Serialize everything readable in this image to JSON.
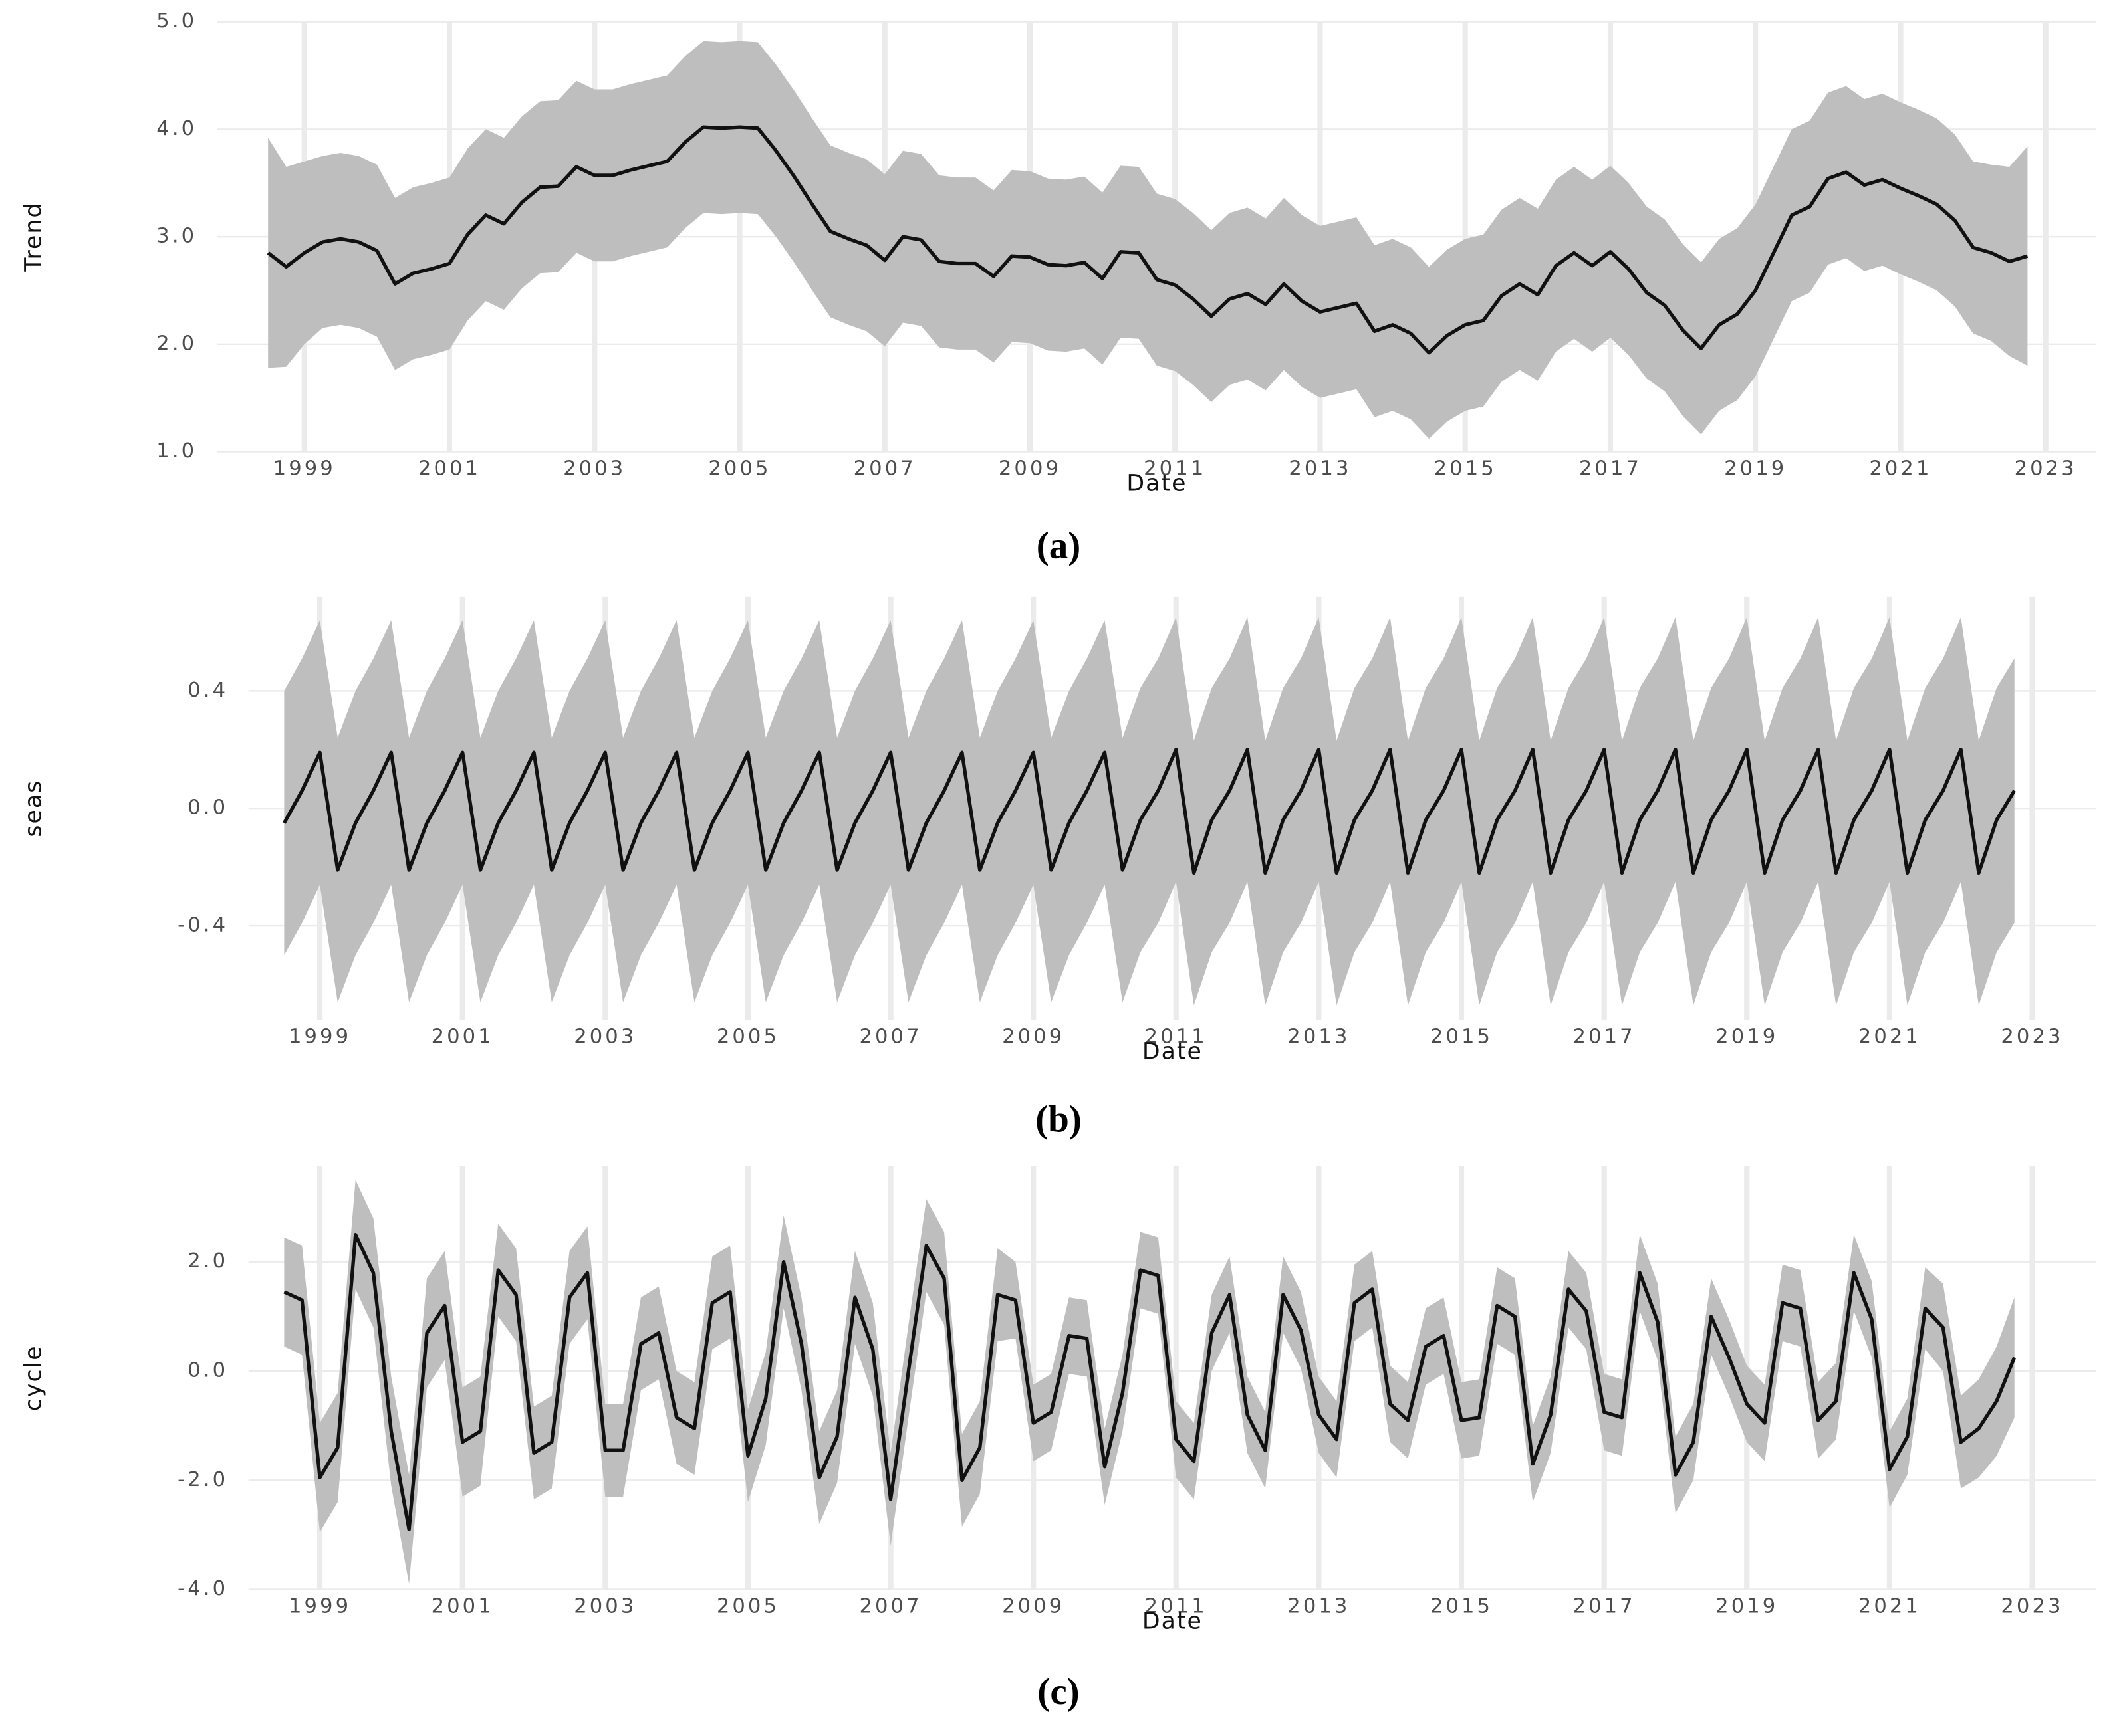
{
  "chart_data": [
    {
      "type": "line",
      "caption": "(a)",
      "xlabel": "Date",
      "ylabel": "Trend",
      "grid": true,
      "color": "#111111",
      "band_color": "#bebebe",
      "xlim": [
        1997.8,
        2023.7
      ],
      "ylim": [
        1.0,
        5.0
      ],
      "xticks": [
        1999,
        2001,
        2003,
        2005,
        2007,
        2009,
        2011,
        2013,
        2015,
        2017,
        2019,
        2021,
        2023
      ],
      "yticks": [
        {
          "value": 1,
          "label": "1.0"
        },
        {
          "value": 2,
          "label": "2.0"
        },
        {
          "value": 3,
          "label": "3.0"
        },
        {
          "value": 4,
          "label": "4.0"
        },
        {
          "value": 5,
          "label": "5.0"
        }
      ],
      "x": [
        1998.5,
        1998.75,
        1999,
        1999.25,
        1999.5,
        1999.75,
        2000,
        2000.25,
        2000.5,
        2000.75,
        2001,
        2001.25,
        2001.5,
        2001.75,
        2002,
        2002.25,
        2002.5,
        2002.75,
        2003,
        2003.25,
        2003.5,
        2003.75,
        2004,
        2004.25,
        2004.5,
        2004.75,
        2005,
        2005.25,
        2005.5,
        2005.75,
        2006,
        2006.25,
        2006.5,
        2006.75,
        2007,
        2007.25,
        2007.5,
        2007.75,
        2008,
        2008.25,
        2008.5,
        2008.75,
        2009,
        2009.25,
        2009.5,
        2009.75,
        2010,
        2010.25,
        2010.5,
        2010.75,
        2011,
        2011.25,
        2011.5,
        2011.75,
        2012,
        2012.25,
        2012.5,
        2012.75,
        2013,
        2013.25,
        2013.5,
        2013.75,
        2014,
        2014.25,
        2014.5,
        2014.75,
        2015,
        2015.25,
        2015.5,
        2015.75,
        2016,
        2016.25,
        2016.5,
        2016.75,
        2017,
        2017.25,
        2017.5,
        2017.75,
        2018,
        2018.25,
        2018.5,
        2018.75,
        2019,
        2019.25,
        2019.5,
        2019.75,
        2020,
        2020.25,
        2020.5,
        2020.75,
        2021,
        2021.25,
        2021.5,
        2021.75,
        2022,
        2022.25,
        2022.5,
        2022.75
      ],
      "values": [
        2.85,
        2.72,
        2.85,
        2.95,
        2.98,
        2.95,
        2.87,
        2.56,
        2.66,
        2.7,
        2.75,
        3.02,
        3.2,
        3.12,
        3.32,
        3.46,
        3.47,
        3.65,
        3.57,
        3.57,
        3.62,
        3.66,
        3.7,
        3.88,
        4.02,
        4.01,
        4.02,
        4.01,
        3.8,
        3.56,
        3.3,
        3.05,
        2.98,
        2.92,
        2.78,
        3.0,
        2.97,
        2.77,
        2.75,
        2.75,
        2.63,
        2.82,
        2.81,
        2.74,
        2.73,
        2.76,
        2.61,
        2.86,
        2.85,
        2.6,
        2.55,
        2.42,
        2.26,
        2.42,
        2.47,
        2.37,
        2.56,
        2.4,
        2.3,
        2.34,
        2.38,
        2.12,
        2.18,
        2.1,
        1.92,
        2.08,
        2.18,
        2.22,
        2.45,
        2.56,
        2.46,
        2.73,
        2.85,
        2.73,
        2.86,
        2.7,
        2.48,
        2.36,
        2.13,
        1.96,
        2.18,
        2.28,
        2.5,
        2.85,
        3.2,
        3.28,
        3.54,
        3.6,
        3.48,
        3.53,
        3.45,
        3.38,
        3.3,
        3.15,
        2.9,
        2.85,
        2.77,
        2.82
      ],
      "upper": [
        3.92,
        3.65,
        3.7,
        3.75,
        3.78,
        3.75,
        3.67,
        3.36,
        3.46,
        3.5,
        3.55,
        3.82,
        4.0,
        3.92,
        4.12,
        4.26,
        4.27,
        4.45,
        4.37,
        4.37,
        4.42,
        4.46,
        4.5,
        4.68,
        4.82,
        4.81,
        4.82,
        4.81,
        4.6,
        4.36,
        4.1,
        3.85,
        3.78,
        3.72,
        3.58,
        3.8,
        3.77,
        3.57,
        3.55,
        3.55,
        3.43,
        3.62,
        3.61,
        3.54,
        3.53,
        3.56,
        3.41,
        3.66,
        3.65,
        3.4,
        3.35,
        3.22,
        3.06,
        3.22,
        3.27,
        3.17,
        3.36,
        3.2,
        3.1,
        3.14,
        3.18,
        2.92,
        2.98,
        2.9,
        2.72,
        2.88,
        2.98,
        3.02,
        3.25,
        3.36,
        3.26,
        3.53,
        3.65,
        3.53,
        3.66,
        3.5,
        3.28,
        3.16,
        2.93,
        2.76,
        2.98,
        3.08,
        3.3,
        3.65,
        4.0,
        4.08,
        4.34,
        4.4,
        4.28,
        4.33,
        4.25,
        4.18,
        4.1,
        3.95,
        3.7,
        3.67,
        3.65,
        3.84
      ],
      "lower": [
        1.78,
        1.79,
        2.0,
        2.15,
        2.18,
        2.15,
        2.07,
        1.76,
        1.86,
        1.9,
        1.95,
        2.22,
        2.4,
        2.32,
        2.52,
        2.66,
        2.67,
        2.85,
        2.77,
        2.77,
        2.82,
        2.86,
        2.9,
        3.08,
        3.22,
        3.21,
        3.22,
        3.21,
        3.0,
        2.76,
        2.5,
        2.25,
        2.18,
        2.12,
        1.98,
        2.2,
        2.17,
        1.97,
        1.95,
        1.95,
        1.83,
        2.02,
        2.01,
        1.94,
        1.93,
        1.96,
        1.81,
        2.06,
        2.05,
        1.8,
        1.75,
        1.62,
        1.46,
        1.62,
        1.67,
        1.57,
        1.76,
        1.6,
        1.5,
        1.54,
        1.58,
        1.32,
        1.38,
        1.3,
        1.12,
        1.28,
        1.38,
        1.42,
        1.65,
        1.76,
        1.66,
        1.93,
        2.05,
        1.93,
        2.06,
        1.9,
        1.68,
        1.56,
        1.33,
        1.16,
        1.38,
        1.48,
        1.7,
        2.05,
        2.4,
        2.48,
        2.74,
        2.8,
        2.68,
        2.73,
        2.65,
        2.58,
        2.5,
        2.35,
        2.1,
        2.03,
        1.89,
        1.8
      ]
    },
    {
      "type": "line",
      "caption": "(b)",
      "xlabel": "Date",
      "ylabel": "seas",
      "grid": true,
      "color": "#111111",
      "band_color": "#bebebe",
      "xlim": [
        1998.0,
        2023.9
      ],
      "ylim": [
        -0.72,
        0.72
      ],
      "xticks": [
        1999,
        2001,
        2003,
        2005,
        2007,
        2009,
        2011,
        2013,
        2015,
        2017,
        2019,
        2021,
        2023
      ],
      "yticks": [
        -0.4,
        {
          "value": 0,
          "label": "0.0"
        },
        0.4
      ],
      "x": [
        1998.5,
        1998.75,
        1999,
        1999.25,
        1999.5,
        1999.75,
        2000,
        2000.25,
        2000.5,
        2000.75,
        2001,
        2001.25,
        2001.5,
        2001.75,
        2002,
        2002.25,
        2002.5,
        2002.75,
        2003,
        2003.25,
        2003.5,
        2003.75,
        2004,
        2004.25,
        2004.5,
        2004.75,
        2005,
        2005.25,
        2005.5,
        2005.75,
        2006,
        2006.25,
        2006.5,
        2006.75,
        2007,
        2007.25,
        2007.5,
        2007.75,
        2008,
        2008.25,
        2008.5,
        2008.75,
        2009,
        2009.25,
        2009.5,
        2009.75,
        2010,
        2010.25,
        2010.5,
        2010.75,
        2011,
        2011.25,
        2011.5,
        2011.75,
        2012,
        2012.25,
        2012.5,
        2012.75,
        2013,
        2013.25,
        2013.5,
        2013.75,
        2014,
        2014.25,
        2014.5,
        2014.75,
        2015,
        2015.25,
        2015.5,
        2015.75,
        2016,
        2016.25,
        2016.5,
        2016.75,
        2017,
        2017.25,
        2017.5,
        2017.75,
        2018,
        2018.25,
        2018.5,
        2018.75,
        2019,
        2019.25,
        2019.5,
        2019.75,
        2020,
        2020.25,
        2020.5,
        2020.75,
        2021,
        2021.25,
        2021.5,
        2021.75,
        2022,
        2022.25,
        2022.5,
        2022.75
      ],
      "values": [
        -0.05,
        0.06,
        0.19,
        -0.21,
        -0.05,
        0.06,
        0.19,
        -0.21,
        -0.05,
        0.06,
        0.19,
        -0.21,
        -0.05,
        0.06,
        0.19,
        -0.21,
        -0.05,
        0.06,
        0.19,
        -0.21,
        -0.05,
        0.06,
        0.19,
        -0.21,
        -0.05,
        0.06,
        0.19,
        -0.21,
        -0.05,
        0.06,
        0.19,
        -0.21,
        -0.05,
        0.06,
        0.19,
        -0.21,
        -0.05,
        0.06,
        0.19,
        -0.21,
        -0.05,
        0.06,
        0.19,
        -0.21,
        -0.05,
        0.06,
        0.19,
        -0.21,
        -0.04,
        0.06,
        0.2,
        -0.22,
        -0.04,
        0.06,
        0.2,
        -0.22,
        -0.04,
        0.06,
        0.2,
        -0.22,
        -0.04,
        0.06,
        0.2,
        -0.22,
        -0.04,
        0.06,
        0.2,
        -0.22,
        -0.04,
        0.06,
        0.2,
        -0.22,
        -0.04,
        0.06,
        0.2,
        -0.22,
        -0.04,
        0.06,
        0.2,
        -0.22,
        -0.04,
        0.06,
        0.2,
        -0.22,
        -0.04,
        0.06,
        0.2,
        -0.22,
        -0.04,
        0.06,
        0.2,
        -0.22,
        -0.04,
        0.06,
        0.2,
        -0.22,
        -0.04,
        0.06
      ],
      "upper": [
        0.4,
        0.51,
        0.64,
        0.24,
        0.4,
        0.51,
        0.64,
        0.24,
        0.4,
        0.51,
        0.64,
        0.24,
        0.4,
        0.51,
        0.64,
        0.24,
        0.4,
        0.51,
        0.64,
        0.24,
        0.4,
        0.51,
        0.64,
        0.24,
        0.4,
        0.51,
        0.64,
        0.24,
        0.4,
        0.51,
        0.64,
        0.24,
        0.4,
        0.51,
        0.64,
        0.24,
        0.4,
        0.51,
        0.64,
        0.24,
        0.4,
        0.51,
        0.64,
        0.24,
        0.4,
        0.51,
        0.64,
        0.24,
        0.41,
        0.51,
        0.65,
        0.23,
        0.41,
        0.51,
        0.65,
        0.23,
        0.41,
        0.51,
        0.65,
        0.23,
        0.41,
        0.51,
        0.65,
        0.23,
        0.41,
        0.51,
        0.65,
        0.23,
        0.41,
        0.51,
        0.65,
        0.23,
        0.41,
        0.51,
        0.65,
        0.23,
        0.41,
        0.51,
        0.65,
        0.23,
        0.41,
        0.51,
        0.65,
        0.23,
        0.41,
        0.51,
        0.65,
        0.23,
        0.41,
        0.51,
        0.65,
        0.23,
        0.41,
        0.51,
        0.65,
        0.23,
        0.41,
        0.51
      ],
      "lower": [
        -0.5,
        -0.39,
        -0.26,
        -0.66,
        -0.5,
        -0.39,
        -0.26,
        -0.66,
        -0.5,
        -0.39,
        -0.26,
        -0.66,
        -0.5,
        -0.39,
        -0.26,
        -0.66,
        -0.5,
        -0.39,
        -0.26,
        -0.66,
        -0.5,
        -0.39,
        -0.26,
        -0.66,
        -0.5,
        -0.39,
        -0.26,
        -0.66,
        -0.5,
        -0.39,
        -0.26,
        -0.66,
        -0.5,
        -0.39,
        -0.26,
        -0.66,
        -0.5,
        -0.39,
        -0.26,
        -0.66,
        -0.5,
        -0.39,
        -0.26,
        -0.66,
        -0.5,
        -0.39,
        -0.26,
        -0.66,
        -0.49,
        -0.39,
        -0.25,
        -0.67,
        -0.49,
        -0.39,
        -0.25,
        -0.67,
        -0.49,
        -0.39,
        -0.25,
        -0.67,
        -0.49,
        -0.39,
        -0.25,
        -0.67,
        -0.49,
        -0.39,
        -0.25,
        -0.67,
        -0.49,
        -0.39,
        -0.25,
        -0.67,
        -0.49,
        -0.39,
        -0.25,
        -0.67,
        -0.49,
        -0.39,
        -0.25,
        -0.67,
        -0.49,
        -0.39,
        -0.25,
        -0.67,
        -0.49,
        -0.39,
        -0.25,
        -0.67,
        -0.49,
        -0.39,
        -0.25,
        -0.67,
        -0.49,
        -0.39,
        -0.25,
        -0.67,
        -0.49,
        -0.39
      ]
    },
    {
      "type": "line",
      "caption": "(c)",
      "xlabel": "Date",
      "ylabel": "cycle",
      "grid": true,
      "color": "#111111",
      "band_color": "#bebebe",
      "xlim": [
        1998.0,
        2023.9
      ],
      "ylim": [
        -4.0,
        3.75
      ],
      "xticks": [
        1999,
        2001,
        2003,
        2005,
        2007,
        2009,
        2011,
        2013,
        2015,
        2017,
        2019,
        2021,
        2023
      ],
      "yticks": [
        {
          "value": -4,
          "label": "-4.0"
        },
        {
          "value": -2,
          "label": "-2.0"
        },
        {
          "value": 0,
          "label": "0.0"
        },
        {
          "value": 2,
          "label": "2.0"
        }
      ],
      "x": [
        1998.5,
        1998.75,
        1999,
        1999.25,
        1999.5,
        1999.75,
        2000,
        2000.25,
        2000.5,
        2000.75,
        2001,
        2001.25,
        2001.5,
        2001.75,
        2002,
        2002.25,
        2002.5,
        2002.75,
        2003,
        2003.25,
        2003.5,
        2003.75,
        2004,
        2004.25,
        2004.5,
        2004.75,
        2005,
        2005.25,
        2005.5,
        2005.75,
        2006,
        2006.25,
        2006.5,
        2006.75,
        2007,
        2007.25,
        2007.5,
        2007.75,
        2008,
        2008.25,
        2008.5,
        2008.75,
        2009,
        2009.25,
        2009.5,
        2009.75,
        2010,
        2010.25,
        2010.5,
        2010.75,
        2011,
        2011.25,
        2011.5,
        2011.75,
        2012,
        2012.25,
        2012.5,
        2012.75,
        2013,
        2013.25,
        2013.5,
        2013.75,
        2014,
        2014.25,
        2014.5,
        2014.75,
        2015,
        2015.25,
        2015.5,
        2015.75,
        2016,
        2016.25,
        2016.5,
        2016.75,
        2017,
        2017.25,
        2017.5,
        2017.75,
        2018,
        2018.25,
        2018.5,
        2018.75,
        2019,
        2019.25,
        2019.5,
        2019.75,
        2020,
        2020.25,
        2020.5,
        2020.75,
        2021,
        2021.25,
        2021.5,
        2021.75,
        2022,
        2022.25,
        2022.5,
        2022.75
      ],
      "values": [
        1.45,
        1.3,
        -1.95,
        -1.4,
        2.5,
        1.8,
        -1.1,
        -2.9,
        0.7,
        1.2,
        -1.3,
        -1.1,
        1.85,
        1.4,
        -1.5,
        -1.3,
        1.35,
        1.8,
        -1.45,
        -1.45,
        0.5,
        0.7,
        -0.85,
        -1.05,
        1.25,
        1.45,
        -1.55,
        -0.5,
        2.0,
        0.5,
        -1.95,
        -1.2,
        1.35,
        0.4,
        -2.35,
        0,
        2.3,
        1.7,
        -2.0,
        -1.4,
        1.4,
        1.3,
        -0.95,
        -0.75,
        0.65,
        0.6,
        -1.75,
        -0.4,
        1.85,
        1.75,
        -1.25,
        -1.65,
        0.7,
        1.4,
        -0.8,
        -1.45,
        1.4,
        0.75,
        -0.8,
        -1.25,
        1.25,
        1.5,
        -0.6,
        -0.9,
        0.45,
        0.65,
        -0.9,
        -0.85,
        1.2,
        1.0,
        -1.7,
        -0.8,
        1.5,
        1.1,
        -0.75,
        -0.85,
        1.8,
        0.9,
        -1.9,
        -1.3,
        1.0,
        0.25,
        -0.6,
        -0.95,
        1.25,
        1.15,
        -0.9,
        -0.55,
        1.8,
        0.95,
        -1.8,
        -1.2,
        1.15,
        0.8,
        -1.3,
        -1.05,
        -0.55,
        0.25
      ],
      "upper": [
        2.45,
        2.3,
        -0.95,
        -0.4,
        3.5,
        2.8,
        -0.1,
        -1.9,
        1.7,
        2.2,
        -0.3,
        -0.1,
        2.7,
        2.25,
        -0.65,
        -0.45,
        2.2,
        2.65,
        -0.6,
        -0.6,
        1.35,
        1.55,
        0,
        -0.2,
        2.1,
        2.3,
        -0.7,
        0.35,
        2.85,
        1.35,
        -1.1,
        -0.35,
        2.2,
        1.25,
        -1.5,
        0.85,
        3.15,
        2.55,
        -1.15,
        -0.55,
        2.25,
        2.0,
        -0.25,
        -0.05,
        1.35,
        1.3,
        -1.05,
        0.3,
        2.55,
        2.45,
        -0.55,
        -0.95,
        1.4,
        2.1,
        -0.1,
        -0.75,
        2.1,
        1.45,
        -0.1,
        -0.55,
        1.95,
        2.2,
        0.1,
        -0.2,
        1.15,
        1.35,
        -0.2,
        -0.15,
        1.9,
        1.7,
        -1.0,
        -0.1,
        2.2,
        1.8,
        -0.05,
        -0.15,
        2.5,
        1.6,
        -1.2,
        -0.6,
        1.7,
        0.95,
        0.1,
        -0.25,
        1.95,
        1.85,
        -0.2,
        0.15,
        2.5,
        1.65,
        -1.1,
        -0.5,
        1.9,
        1.6,
        -0.45,
        -0.15,
        0.45,
        1.35
      ],
      "lower": [
        0.45,
        0.3,
        -2.95,
        -2.4,
        1.5,
        0.8,
        -2.1,
        -3.9,
        -0.3,
        0.2,
        -2.3,
        -2.1,
        1.0,
        0.55,
        -2.35,
        -2.15,
        0.5,
        0.95,
        -2.3,
        -2.3,
        -0.35,
        -0.15,
        -1.7,
        -1.9,
        0.4,
        0.6,
        -2.4,
        -1.35,
        1.15,
        -0.35,
        -2.8,
        -2.05,
        0.5,
        -0.45,
        -3.2,
        -0.85,
        1.45,
        0.85,
        -2.85,
        -2.25,
        0.55,
        0.6,
        -1.65,
        -1.45,
        -0.05,
        -0.1,
        -2.45,
        -1.1,
        1.15,
        1.05,
        -1.95,
        -2.35,
        0,
        0.7,
        -1.5,
        -2.15,
        0.7,
        0.05,
        -1.5,
        -1.95,
        0.55,
        0.8,
        -1.3,
        -1.6,
        -0.25,
        -0.05,
        -1.6,
        -1.55,
        0.5,
        0.3,
        -2.4,
        -1.5,
        0.8,
        0.4,
        -1.45,
        -1.55,
        1.1,
        0.2,
        -2.6,
        -2.0,
        0.3,
        -0.45,
        -1.3,
        -1.65,
        0.55,
        0.45,
        -1.6,
        -1.25,
        1.1,
        0.25,
        -2.5,
        -1.9,
        0.4,
        0.0,
        -2.15,
        -1.95,
        -1.55,
        -0.85
      ]
    }
  ]
}
